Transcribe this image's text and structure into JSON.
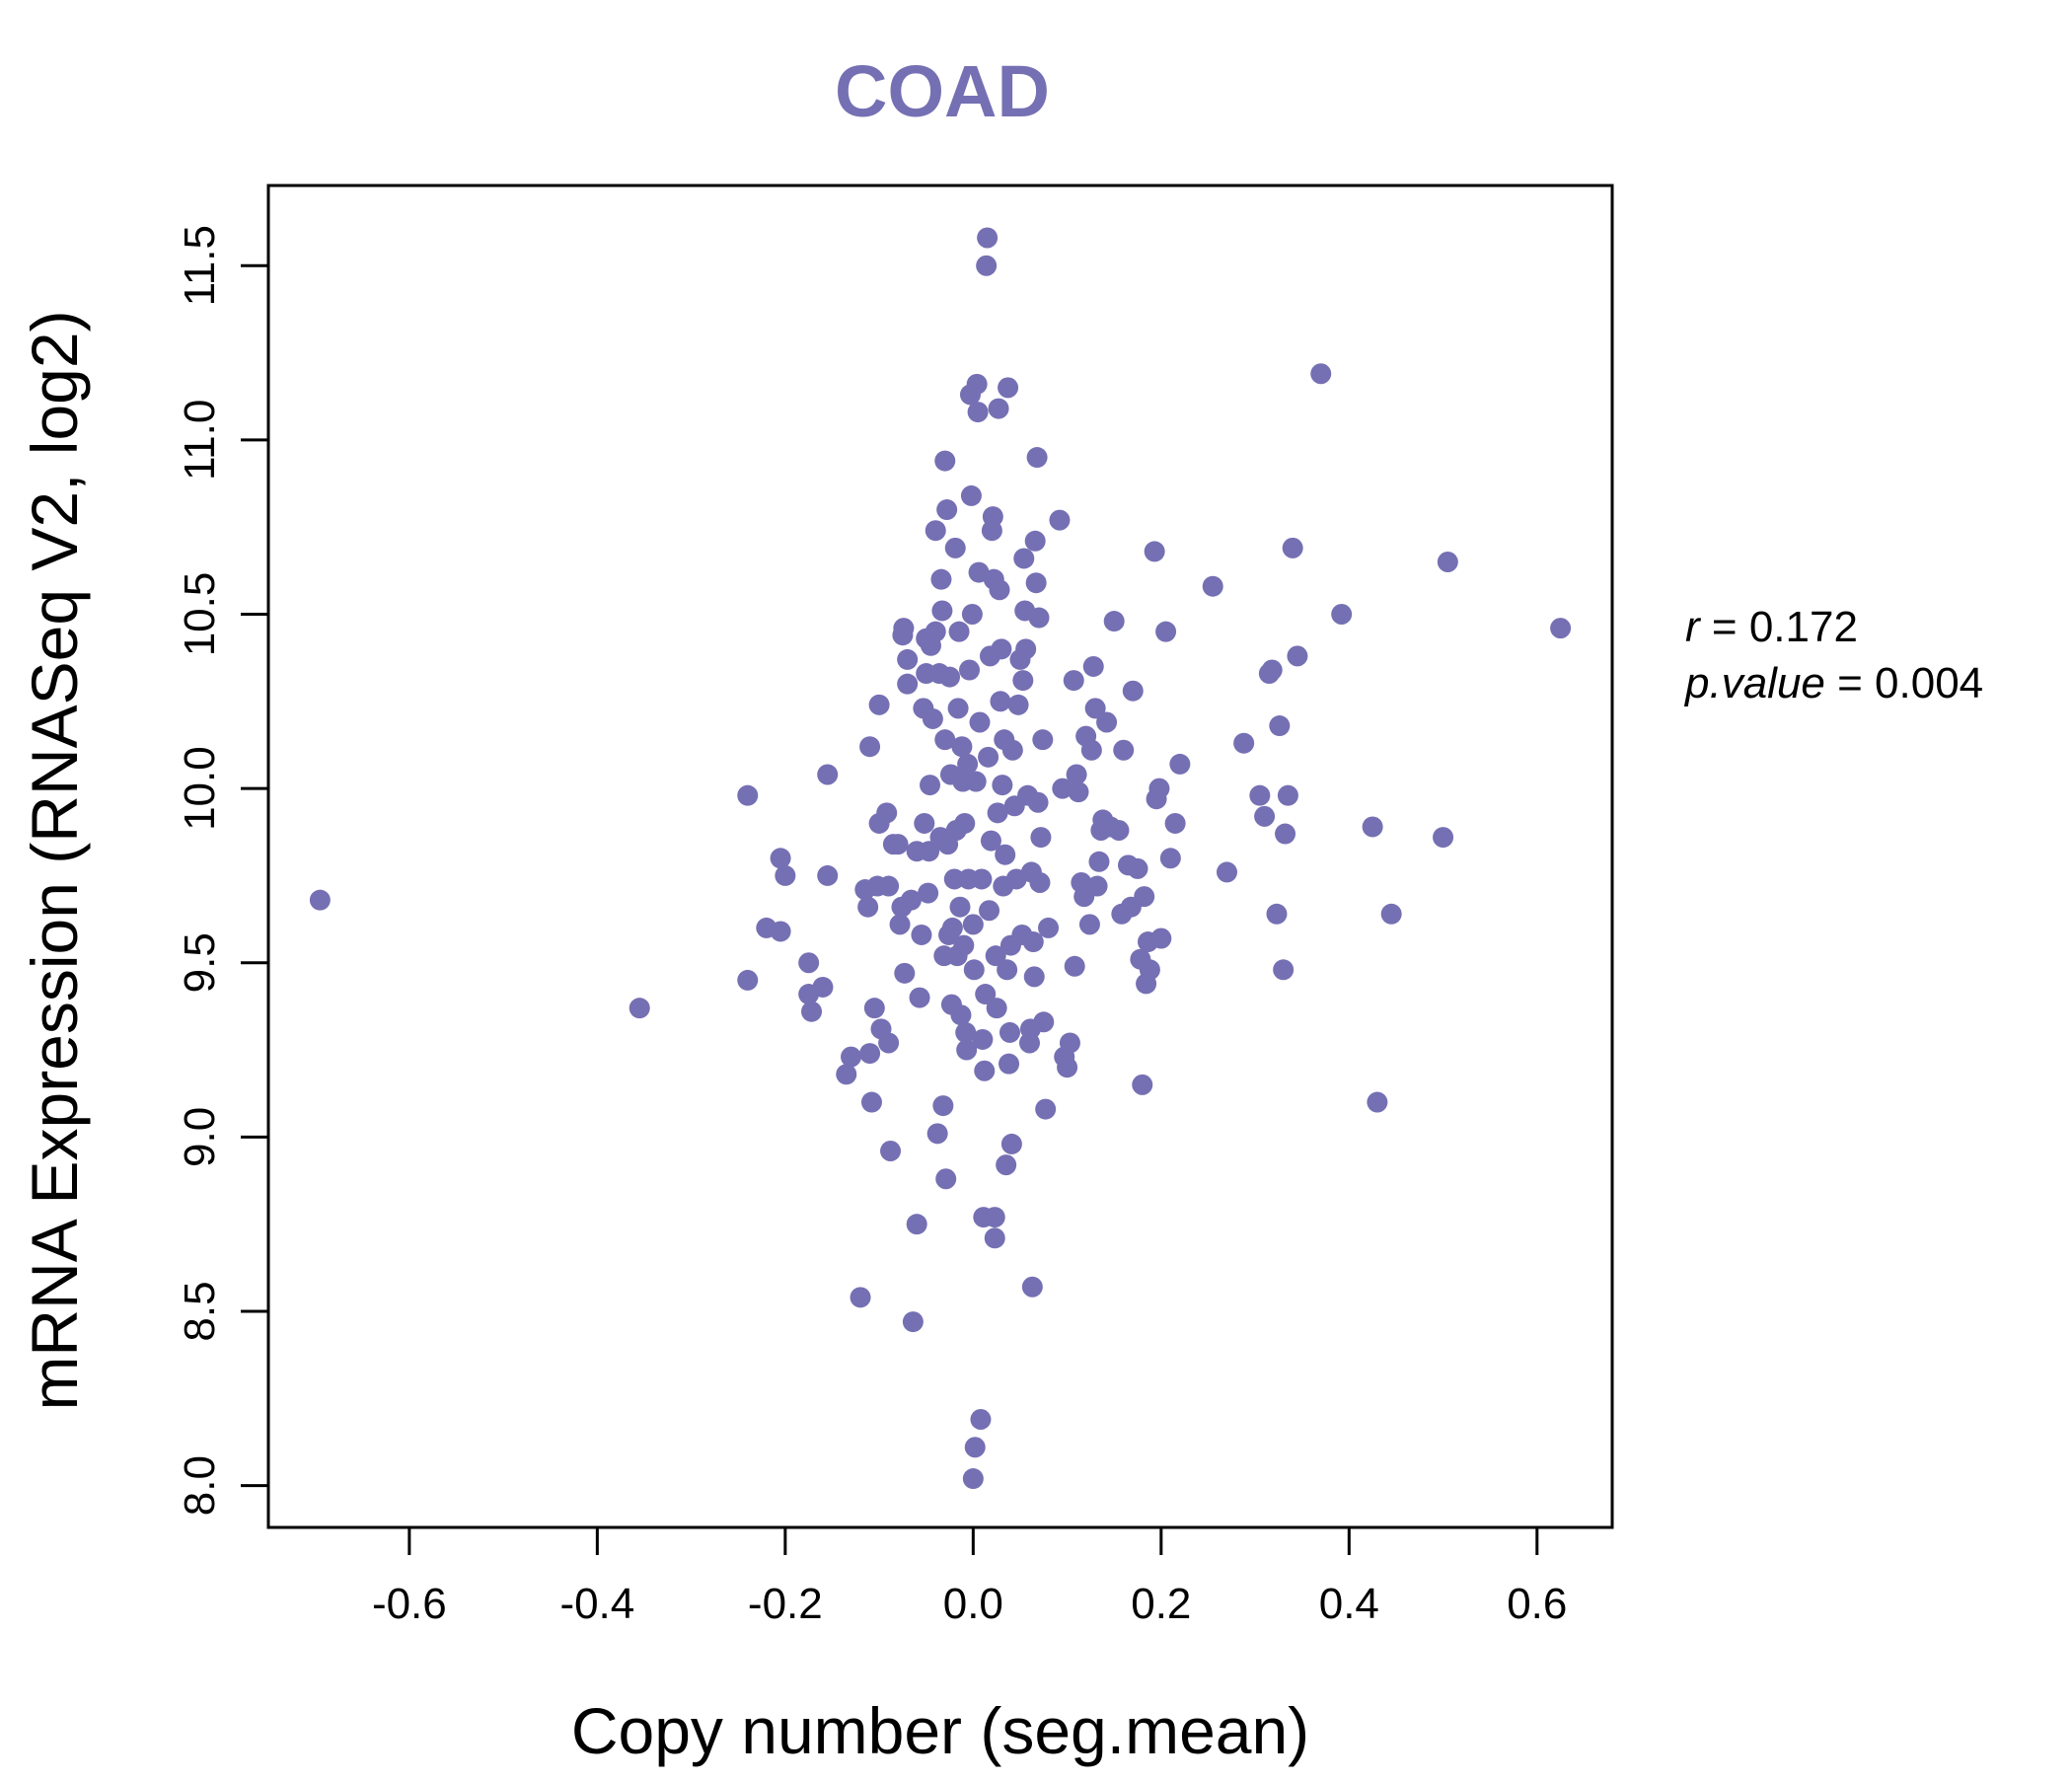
{
  "colors": {
    "point": "#7570B3",
    "title": "#7570B3",
    "axis": "#000000"
  },
  "chart_data": {
    "type": "scatter",
    "title": "COAD",
    "xlabel": "Copy number (seg.mean)",
    "ylabel": "mRNA Expression (RNASeq V2, log2)",
    "xlim": [
      -0.75,
      0.68
    ],
    "ylim": [
      7.88,
      11.73
    ],
    "x_ticks": [
      -0.6,
      -0.4,
      -0.2,
      0.0,
      0.2,
      0.4,
      0.6
    ],
    "x_tick_labels": [
      "-0.6",
      "-0.4",
      "-0.2",
      "0.0",
      "0.2",
      "0.4",
      "0.6"
    ],
    "y_ticks": [
      8.0,
      8.5,
      9.0,
      9.5,
      10.0,
      10.5,
      11.0,
      11.5
    ],
    "y_tick_labels": [
      "8.0",
      "8.5",
      "9.0",
      "9.5",
      "10.0",
      "10.5",
      "11.0",
      "11.5"
    ],
    "annotations": {
      "r_label": "r",
      "r_value": "0.172",
      "p_label": "p.value",
      "p_value": "0.004"
    },
    "points": [
      [
        -0.695,
        9.68
      ],
      [
        -0.355,
        9.37
      ],
      [
        -0.24,
        9.98
      ],
      [
        -0.24,
        9.45
      ],
      [
        -0.22,
        9.6
      ],
      [
        -0.205,
        9.59
      ],
      [
        -0.205,
        9.8
      ],
      [
        -0.2,
        9.75
      ],
      [
        -0.175,
        9.5
      ],
      [
        -0.175,
        9.41
      ],
      [
        -0.172,
        9.36
      ],
      [
        -0.16,
        9.43
      ],
      [
        -0.155,
        10.04
      ],
      [
        -0.155,
        9.75
      ],
      [
        -0.135,
        9.18
      ],
      [
        -0.13,
        9.23
      ],
      [
        -0.12,
        8.54
      ],
      [
        -0.115,
        9.71
      ],
      [
        -0.112,
        9.66
      ],
      [
        -0.11,
        10.12
      ],
      [
        -0.11,
        9.24
      ],
      [
        -0.108,
        9.1
      ],
      [
        -0.105,
        9.37
      ],
      [
        -0.102,
        9.72
      ],
      [
        -0.1,
        10.24
      ],
      [
        -0.1,
        9.9
      ],
      [
        -0.098,
        9.31
      ],
      [
        -0.092,
        9.93
      ],
      [
        -0.09,
        9.27
      ],
      [
        -0.09,
        9.72
      ],
      [
        -0.088,
        8.96
      ],
      [
        -0.085,
        9.84
      ],
      [
        -0.08,
        9.84
      ],
      [
        -0.078,
        9.61
      ],
      [
        -0.076,
        9.66
      ],
      [
        -0.075,
        10.44
      ],
      [
        -0.074,
        10.46
      ],
      [
        -0.073,
        9.47
      ],
      [
        -0.07,
        10.37
      ],
      [
        -0.07,
        10.3
      ],
      [
        -0.066,
        9.68
      ],
      [
        -0.064,
        8.47
      ],
      [
        -0.06,
        8.75
      ],
      [
        -0.06,
        9.82
      ],
      [
        -0.057,
        9.4
      ],
      [
        -0.055,
        9.58
      ],
      [
        -0.053,
        10.23
      ],
      [
        -0.052,
        9.9
      ],
      [
        -0.05,
        10.33
      ],
      [
        -0.05,
        10.43
      ],
      [
        -0.048,
        9.7
      ],
      [
        -0.047,
        9.82
      ],
      [
        -0.046,
        10.01
      ],
      [
        -0.045,
        10.41
      ],
      [
        -0.043,
        10.2
      ],
      [
        -0.04,
        10.74
      ],
      [
        -0.04,
        10.45
      ],
      [
        -0.038,
        9.01
      ],
      [
        -0.036,
        10.33
      ],
      [
        -0.035,
        9.86
      ],
      [
        -0.034,
        10.6
      ],
      [
        -0.033,
        10.51
      ],
      [
        -0.032,
        9.09
      ],
      [
        -0.031,
        9.52
      ],
      [
        -0.03,
        10.94
      ],
      [
        -0.03,
        10.14
      ],
      [
        -0.029,
        8.88
      ],
      [
        -0.028,
        10.8
      ],
      [
        -0.027,
        9.84
      ],
      [
        -0.026,
        9.58
      ],
      [
        -0.025,
        10.32
      ],
      [
        -0.024,
        10.04
      ],
      [
        -0.023,
        9.38
      ],
      [
        -0.022,
        9.6
      ],
      [
        -0.02,
        9.74
      ],
      [
        -0.019,
        10.69
      ],
      [
        -0.018,
        9.88
      ],
      [
        -0.017,
        9.52
      ],
      [
        -0.016,
        10.23
      ],
      [
        -0.015,
        10.45
      ],
      [
        -0.014,
        9.66
      ],
      [
        -0.013,
        9.35
      ],
      [
        -0.012,
        10.12
      ],
      [
        -0.011,
        10.02
      ],
      [
        -0.01,
        9.55
      ],
      [
        -0.009,
        9.9
      ],
      [
        -0.008,
        9.3
      ],
      [
        -0.007,
        9.25
      ],
      [
        -0.006,
        10.07
      ],
      [
        -0.005,
        9.74
      ],
      [
        -0.004,
        10.34
      ],
      [
        -0.003,
        11.13
      ],
      [
        -0.002,
        10.84
      ],
      [
        -0.001,
        10.5
      ],
      [
        0.0,
        9.61
      ],
      [
        0.0,
        8.02
      ],
      [
        0.001,
        9.48
      ],
      [
        0.002,
        8.11
      ],
      [
        0.003,
        10.02
      ],
      [
        0.004,
        11.16
      ],
      [
        0.005,
        11.08
      ],
      [
        0.006,
        10.62
      ],
      [
        0.007,
        10.19
      ],
      [
        0.008,
        8.19
      ],
      [
        0.009,
        9.74
      ],
      [
        0.01,
        9.28
      ],
      [
        0.011,
        8.77
      ],
      [
        0.012,
        9.19
      ],
      [
        0.013,
        9.41
      ],
      [
        0.014,
        11.5
      ],
      [
        0.015,
        11.58
      ],
      [
        0.016,
        10.09
      ],
      [
        0.017,
        9.65
      ],
      [
        0.018,
        10.38
      ],
      [
        0.019,
        9.85
      ],
      [
        0.02,
        10.74
      ],
      [
        0.021,
        10.78
      ],
      [
        0.022,
        10.6
      ],
      [
        0.023,
        8.77
      ],
      [
        0.023,
        8.71
      ],
      [
        0.024,
        9.52
      ],
      [
        0.025,
        9.37
      ],
      [
        0.026,
        9.93
      ],
      [
        0.027,
        11.09
      ],
      [
        0.028,
        10.57
      ],
      [
        0.029,
        10.25
      ],
      [
        0.03,
        10.4
      ],
      [
        0.031,
        10.01
      ],
      [
        0.032,
        9.72
      ],
      [
        0.033,
        10.14
      ],
      [
        0.034,
        9.81
      ],
      [
        0.035,
        8.92
      ],
      [
        0.036,
        9.48
      ],
      [
        0.037,
        11.15
      ],
      [
        0.038,
        9.21
      ],
      [
        0.039,
        9.3
      ],
      [
        0.04,
        9.55
      ],
      [
        0.041,
        8.98
      ],
      [
        0.042,
        10.11
      ],
      [
        0.044,
        9.95
      ],
      [
        0.046,
        9.74
      ],
      [
        0.048,
        10.24
      ],
      [
        0.05,
        10.37
      ],
      [
        0.052,
        9.58
      ],
      [
        0.053,
        10.31
      ],
      [
        0.054,
        10.66
      ],
      [
        0.055,
        10.51
      ],
      [
        0.056,
        10.4
      ],
      [
        0.058,
        9.98
      ],
      [
        0.06,
        9.27
      ],
      [
        0.061,
        9.31
      ],
      [
        0.062,
        9.76
      ],
      [
        0.063,
        8.57
      ],
      [
        0.064,
        9.56
      ],
      [
        0.065,
        9.46
      ],
      [
        0.066,
        10.71
      ],
      [
        0.067,
        10.59
      ],
      [
        0.068,
        10.95
      ],
      [
        0.069,
        9.96
      ],
      [
        0.07,
        10.49
      ],
      [
        0.071,
        9.73
      ],
      [
        0.072,
        9.86
      ],
      [
        0.074,
        10.14
      ],
      [
        0.075,
        9.33
      ],
      [
        0.077,
        9.08
      ],
      [
        0.08,
        9.6
      ],
      [
        0.092,
        10.77
      ],
      [
        0.095,
        10.0
      ],
      [
        0.097,
        9.23
      ],
      [
        0.1,
        9.2
      ],
      [
        0.103,
        9.27
      ],
      [
        0.107,
        10.31
      ],
      [
        0.108,
        9.49
      ],
      [
        0.11,
        10.04
      ],
      [
        0.112,
        9.99
      ],
      [
        0.115,
        9.73
      ],
      [
        0.118,
        9.69
      ],
      [
        0.12,
        10.15
      ],
      [
        0.124,
        9.61
      ],
      [
        0.126,
        10.11
      ],
      [
        0.128,
        10.35
      ],
      [
        0.13,
        10.23
      ],
      [
        0.132,
        9.72
      ],
      [
        0.134,
        9.79
      ],
      [
        0.136,
        9.88
      ],
      [
        0.138,
        9.91
      ],
      [
        0.142,
        10.19
      ],
      [
        0.146,
        9.89
      ],
      [
        0.15,
        10.48
      ],
      [
        0.155,
        9.88
      ],
      [
        0.158,
        9.64
      ],
      [
        0.16,
        10.11
      ],
      [
        0.165,
        9.78
      ],
      [
        0.168,
        9.66
      ],
      [
        0.17,
        10.28
      ],
      [
        0.175,
        9.77
      ],
      [
        0.178,
        9.51
      ],
      [
        0.18,
        9.15
      ],
      [
        0.182,
        9.69
      ],
      [
        0.184,
        9.44
      ],
      [
        0.186,
        9.56
      ],
      [
        0.188,
        9.48
      ],
      [
        0.193,
        10.68
      ],
      [
        0.195,
        9.97
      ],
      [
        0.198,
        10.0
      ],
      [
        0.2,
        9.57
      ],
      [
        0.205,
        10.45
      ],
      [
        0.21,
        9.8
      ],
      [
        0.215,
        9.9
      ],
      [
        0.22,
        10.07
      ],
      [
        0.255,
        10.58
      ],
      [
        0.27,
        9.76
      ],
      [
        0.288,
        10.13
      ],
      [
        0.305,
        9.98
      ],
      [
        0.31,
        9.92
      ],
      [
        0.315,
        10.33
      ],
      [
        0.318,
        10.34
      ],
      [
        0.323,
        9.64
      ],
      [
        0.326,
        10.18
      ],
      [
        0.33,
        9.48
      ],
      [
        0.332,
        9.87
      ],
      [
        0.335,
        9.98
      ],
      [
        0.34,
        10.69
      ],
      [
        0.345,
        10.38
      ],
      [
        0.37,
        11.19
      ],
      [
        0.392,
        10.5
      ],
      [
        0.425,
        9.89
      ],
      [
        0.43,
        9.1
      ],
      [
        0.445,
        9.64
      ],
      [
        0.5,
        9.86
      ],
      [
        0.505,
        10.65
      ],
      [
        0.625,
        10.46
      ]
    ]
  }
}
